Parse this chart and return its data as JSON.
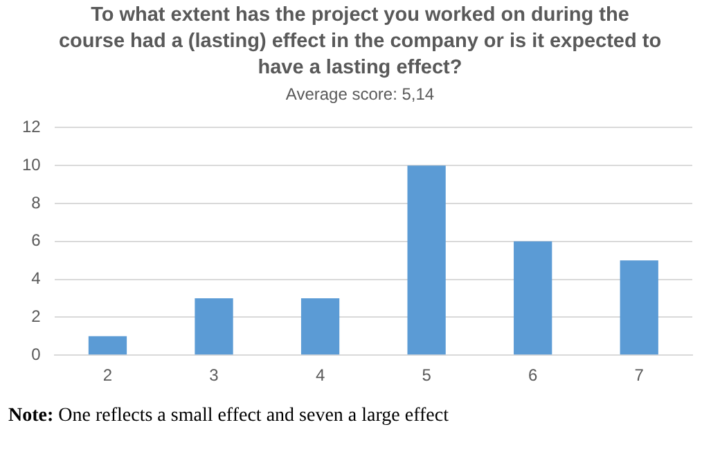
{
  "chart_data": {
    "type": "bar",
    "title": "To what extent has the project you worked on during the course had a (lasting) effect in the company or is it expected to have a lasting effect?",
    "subtitle": "Average score: 5,14",
    "categories": [
      "2",
      "3",
      "4",
      "5",
      "6",
      "7"
    ],
    "values": [
      1,
      3,
      3,
      10,
      6,
      5
    ],
    "color": "#5b9bd5",
    "ylim": [
      0,
      12
    ],
    "yticks": [
      0,
      2,
      4,
      6,
      8,
      10,
      12
    ],
    "grid": "y",
    "annotations": [
      "Note: One reflects a small effect and seven a large effect"
    ]
  }
}
